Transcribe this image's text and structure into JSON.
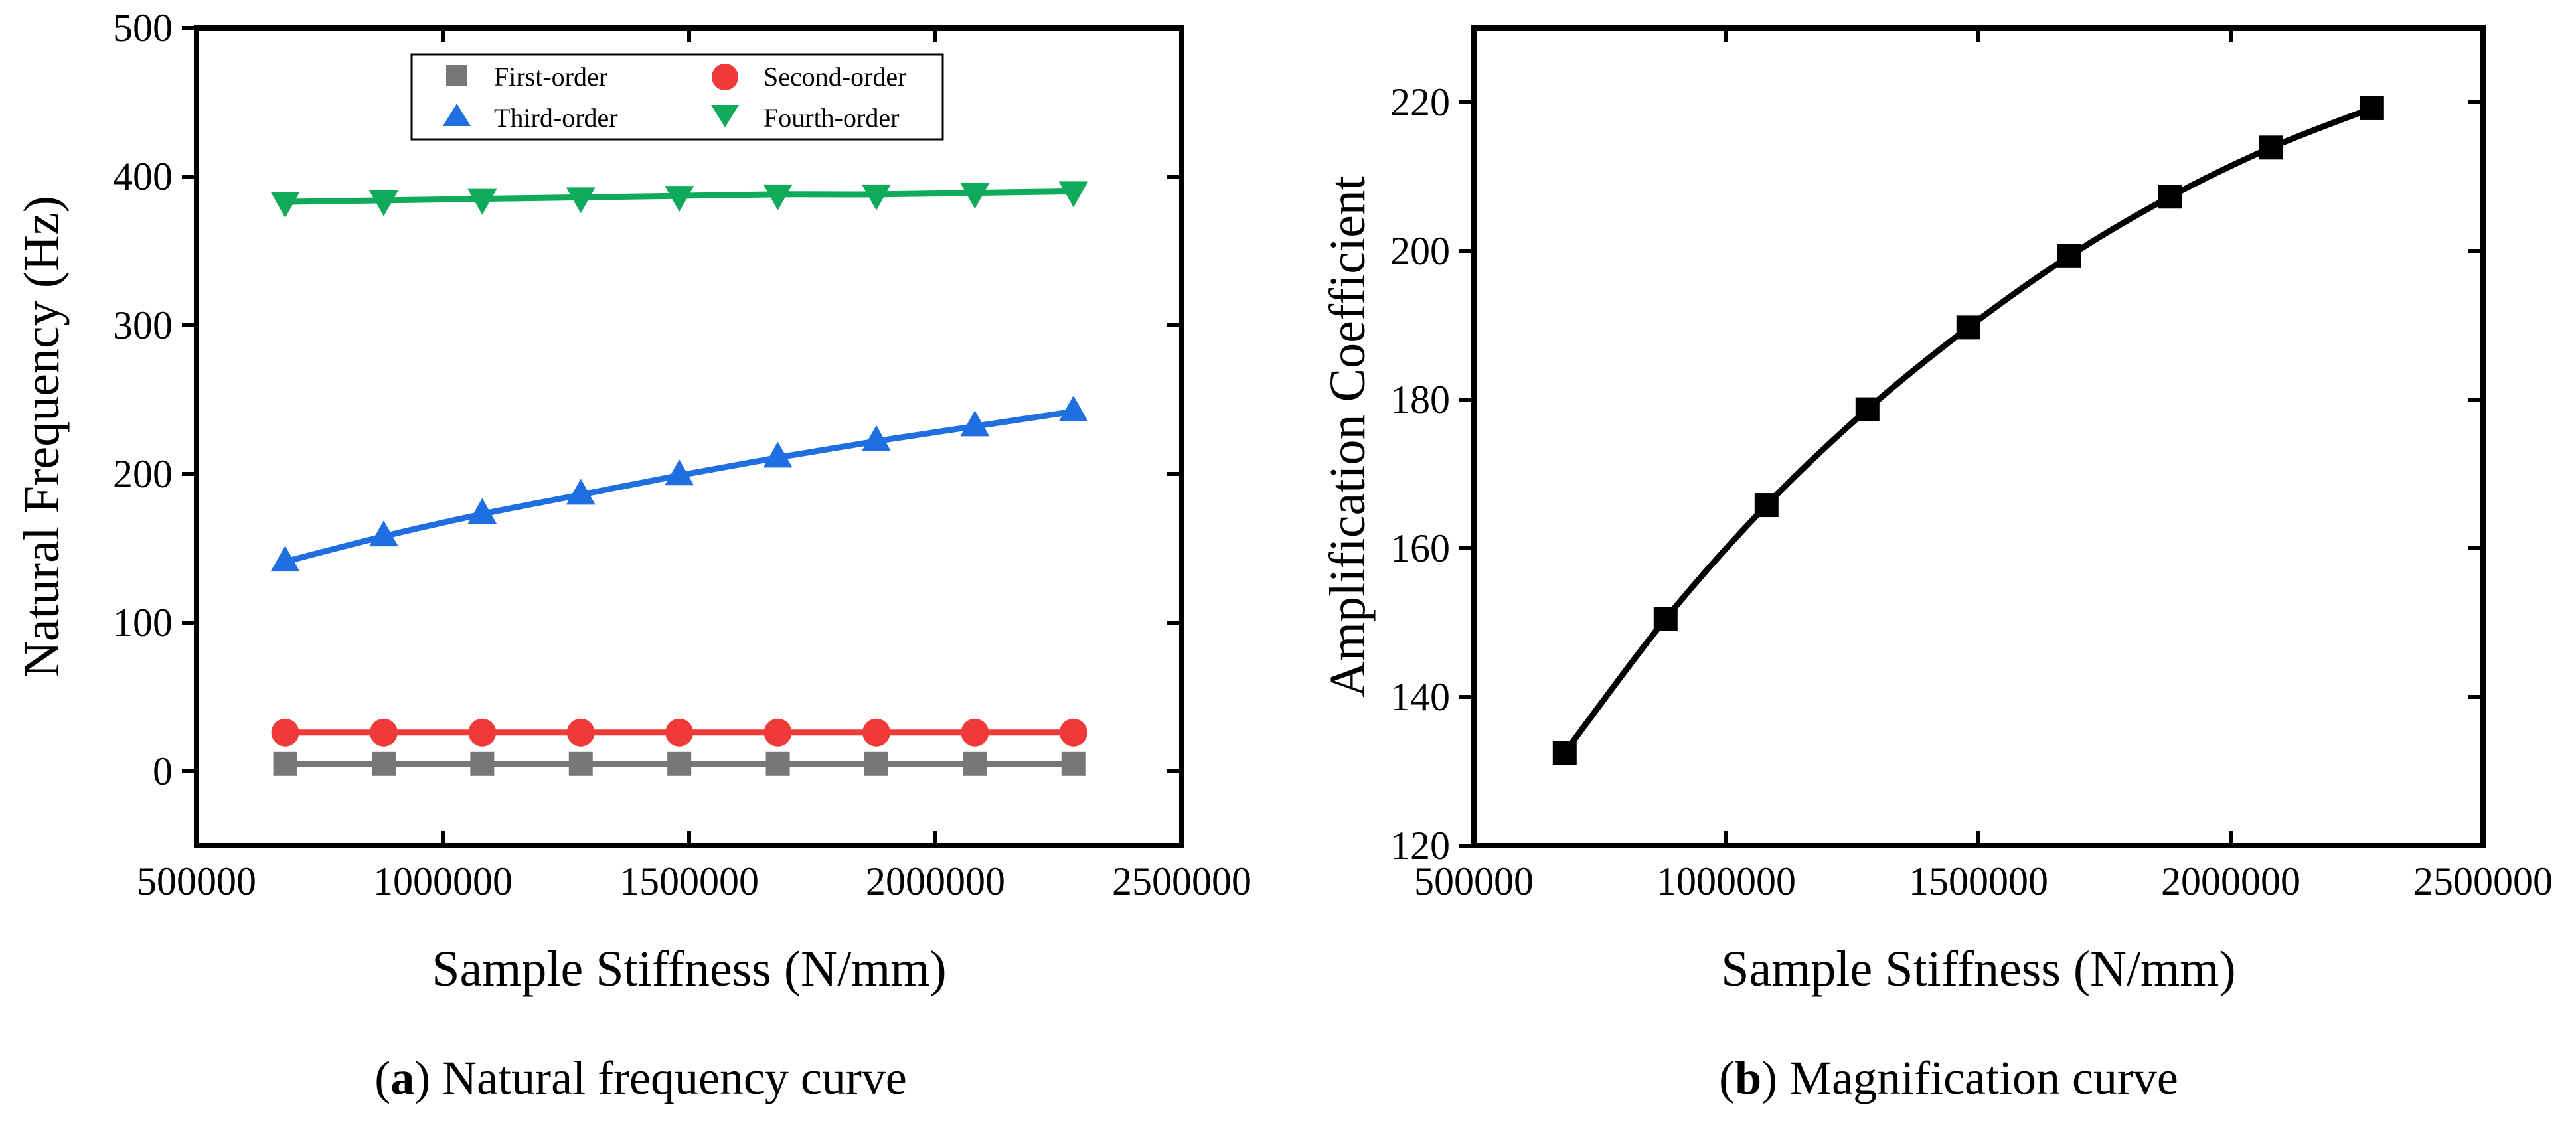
{
  "chart_data": [
    {
      "type": "line",
      "panel": "a",
      "title": "",
      "caption_letter": "a",
      "caption_text": "Natural frequency curve",
      "xlabel": "Sample Stiffness (N/mm)",
      "ylabel": "Natural Frequency (Hz)",
      "xlim": [
        500000,
        2500000
      ],
      "ylim": [
        -50,
        500
      ],
      "xticks": [
        500000,
        1000000,
        1500000,
        2000000,
        2500000
      ],
      "xtick_labels": [
        "500000",
        "1000000",
        "1500000",
        "2000000",
        "2500000"
      ],
      "yticks": [
        0,
        100,
        200,
        300,
        400,
        500
      ],
      "ytick_labels": [
        "0",
        "100",
        "200",
        "300",
        "400",
        "500"
      ],
      "legend_position": "top-center",
      "x": [
        680000,
        880000,
        1080000,
        1280000,
        1480000,
        1680000,
        1880000,
        2080000,
        2280000
      ],
      "series": [
        {
          "name": "First-order",
          "marker": "square",
          "color": "#777777",
          "values": [
            5,
            5,
            5,
            5,
            5,
            5,
            5,
            5,
            5
          ]
        },
        {
          "name": "Second-order",
          "marker": "circle",
          "color": "#f03a3a",
          "values": [
            26,
            26,
            26,
            26,
            26,
            26,
            26,
            26,
            26
          ]
        },
        {
          "name": "Third-order",
          "marker": "triangle-up",
          "color": "#1f6fe0",
          "values": [
            141,
            158,
            173,
            186,
            199,
            211,
            222,
            232,
            242
          ]
        },
        {
          "name": "Fourth-order",
          "marker": "triangle-down",
          "color": "#0faa5a",
          "values": [
            383,
            384,
            385,
            386,
            387,
            388,
            388,
            389,
            390
          ]
        }
      ]
    },
    {
      "type": "line",
      "panel": "b",
      "title": "",
      "caption_letter": "b",
      "caption_text": "Magnification curve",
      "xlabel": "Sample Stiffness (N/mm)",
      "ylabel": "Amplification Coefficient",
      "xlim": [
        500000,
        2500000
      ],
      "ylim": [
        120,
        230
      ],
      "xticks": [
        500000,
        1000000,
        1500000,
        2000000,
        2500000
      ],
      "xtick_labels": [
        "500000",
        "1000000",
        "1500000",
        "2000000",
        "2500000"
      ],
      "yticks": [
        120,
        140,
        160,
        180,
        200,
        220
      ],
      "ytick_labels": [
        "120",
        "140",
        "160",
        "180",
        "200",
        "220"
      ],
      "x": [
        680000,
        880000,
        1080000,
        1280000,
        1480000,
        1680000,
        1880000,
        2080000,
        2280000
      ],
      "series": [
        {
          "name": "Amplification Coefficient",
          "marker": "square",
          "color": "#000000",
          "values": [
            132.5,
            150.5,
            165.8,
            178.7,
            189.7,
            199.3,
            207.3,
            213.9,
            219.2
          ]
        }
      ]
    }
  ]
}
